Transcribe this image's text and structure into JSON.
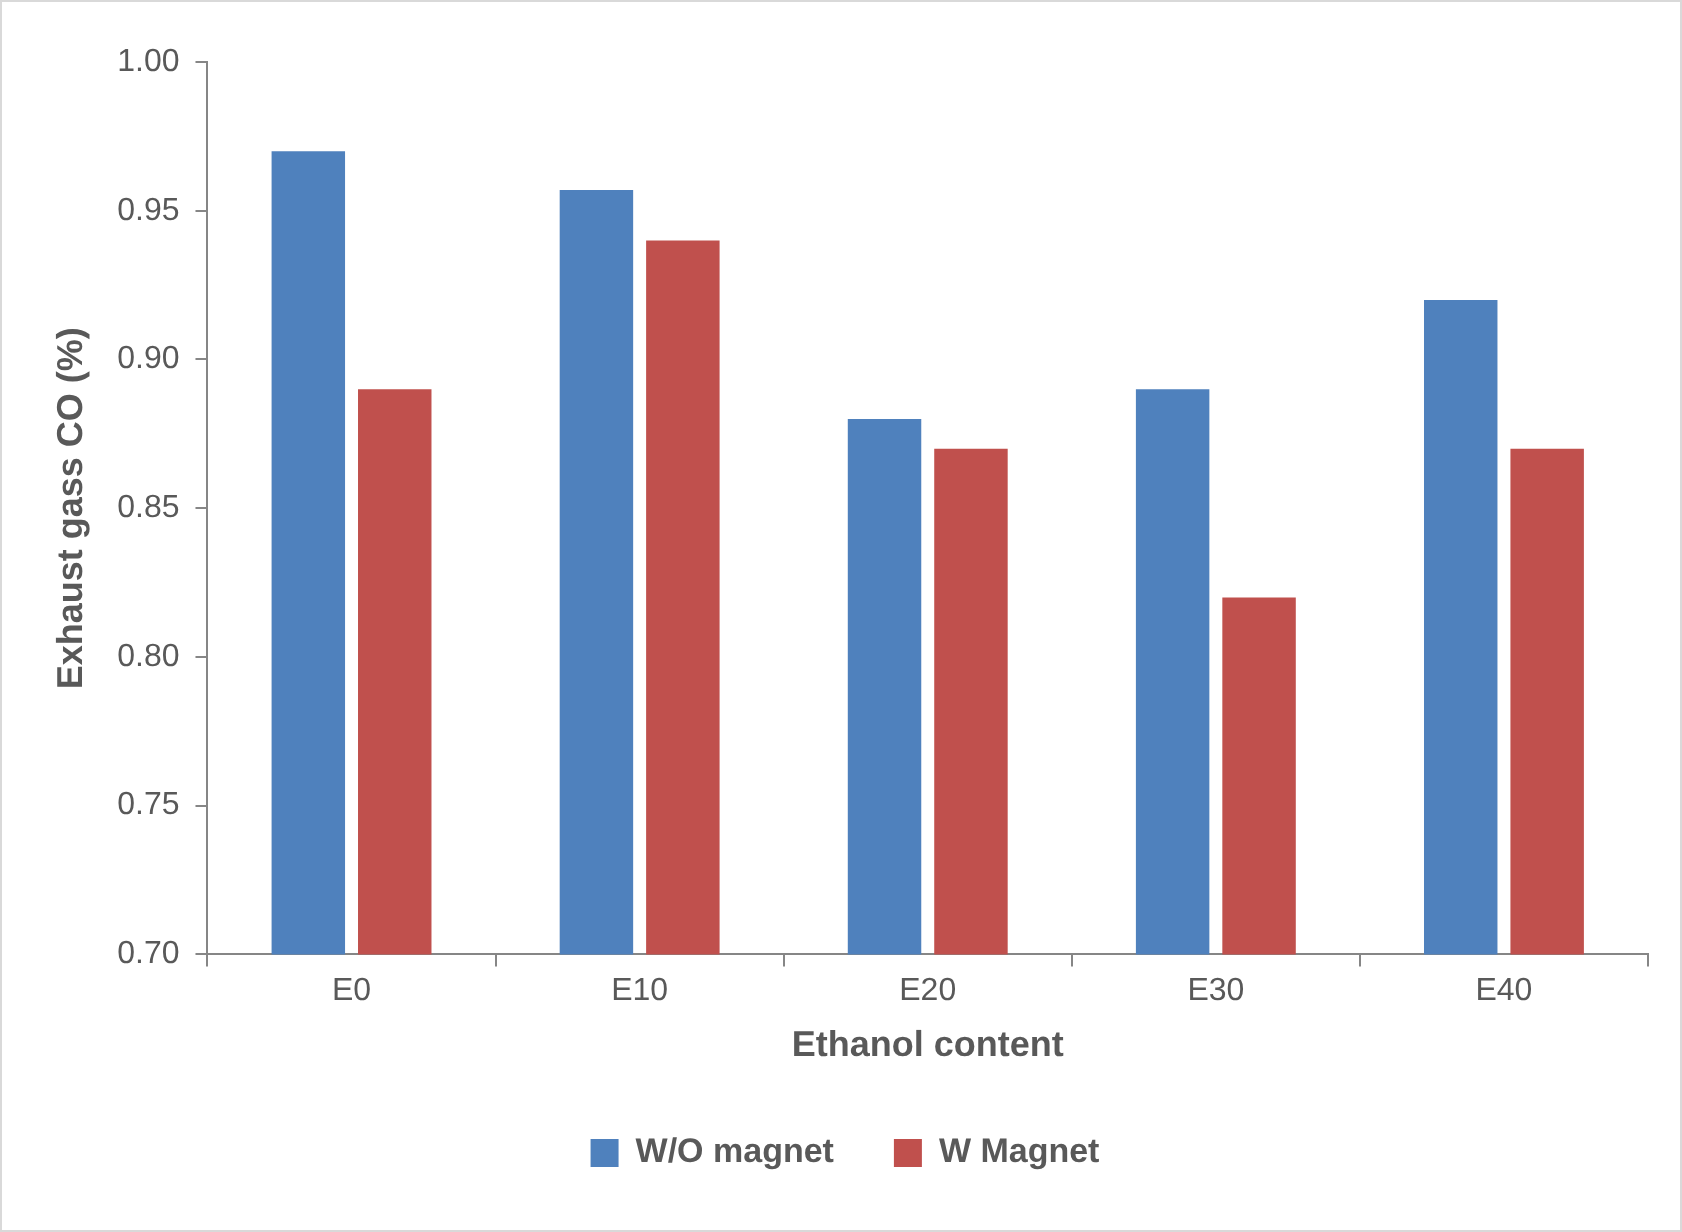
{
  "chart_data": {
    "type": "bar",
    "xlabel": "Ethanol content",
    "ylabel": "Exhaust gass CO (%)",
    "categories": [
      "E0",
      "E10",
      "E20",
      "E30",
      "E40"
    ],
    "series": [
      {
        "name": "W/O magnet",
        "color": "#4f81bd",
        "values": [
          0.97,
          0.957,
          0.88,
          0.89,
          0.92
        ]
      },
      {
        "name": "W Magnet",
        "color": "#c0504d",
        "values": [
          0.89,
          0.94,
          0.87,
          0.82,
          0.87
        ]
      }
    ],
    "ylim": [
      0.7,
      1.0
    ],
    "yticks": [
      {
        "value": 0.7,
        "label": "0.70"
      },
      {
        "value": 0.75,
        "label": "0.75"
      },
      {
        "value": 0.8,
        "label": "0.80"
      },
      {
        "value": 0.85,
        "label": "0.85"
      },
      {
        "value": 0.9,
        "label": "0.90"
      },
      {
        "value": 0.95,
        "label": "0.95"
      },
      {
        "value": 1.0,
        "label": "1.00"
      }
    ],
    "legend": "bottom"
  }
}
